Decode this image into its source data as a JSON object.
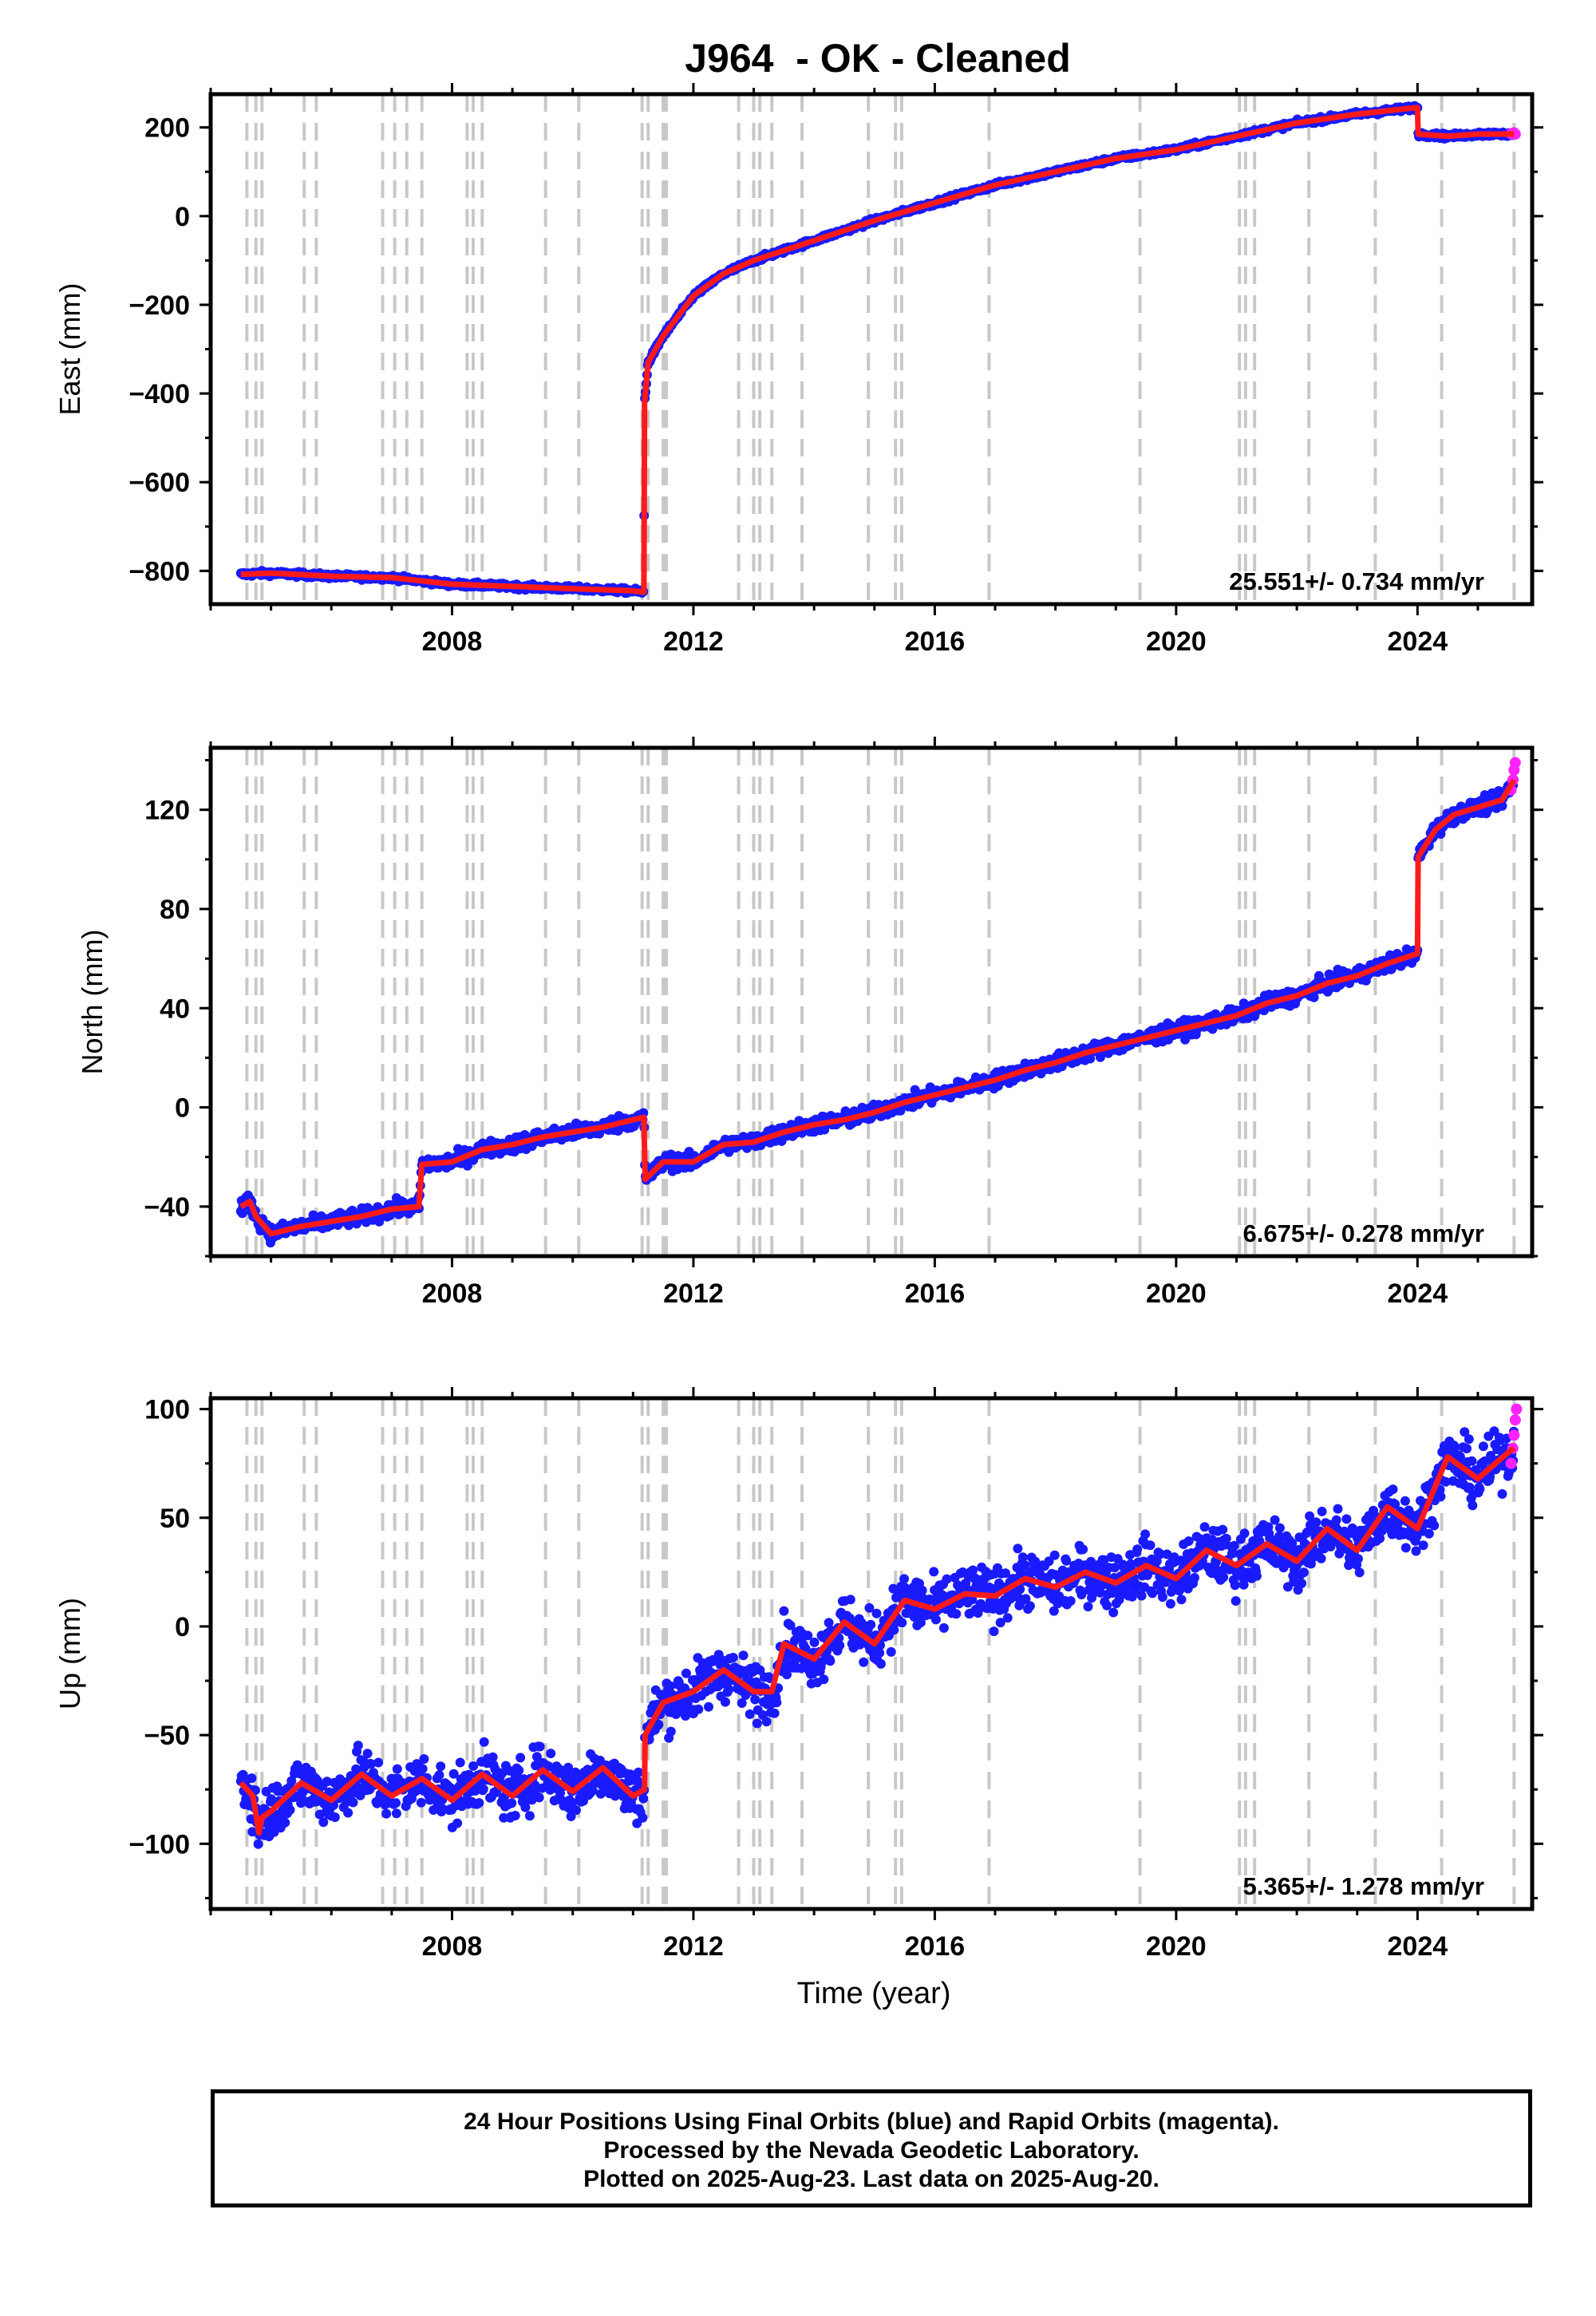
{
  "title": "J964  - OK - Cleaned",
  "colors": {
    "final_orbits": "#1a1aff",
    "rapid_orbits": "#ff22ff",
    "model_fit": "#ff1a1a",
    "event_lines": "#c8c8c8"
  },
  "x_axis": {
    "label": "Time (year)",
    "range": [
      2004.0,
      2025.9
    ],
    "ticks": [
      2008,
      2012,
      2016,
      2020,
      2024
    ]
  },
  "event_dates": [
    2004.6,
    2004.75,
    2004.85,
    2005.55,
    2005.75,
    2006.85,
    2007.05,
    2007.25,
    2007.5,
    2008.25,
    2008.35,
    2008.5,
    2009.55,
    2010.1,
    2011.15,
    2011.25,
    2011.5,
    2011.55,
    2012.75,
    2013.0,
    2013.1,
    2013.3,
    2013.8,
    2014.9,
    2015.35,
    2015.45,
    2016.9,
    2019.4,
    2021.05,
    2021.15,
    2021.3,
    2022.2,
    2023.3,
    2024.4,
    2025.6
  ],
  "footer": {
    "line1": "24 Hour Positions Using Final Orbits (blue) and Rapid Orbits (magenta).",
    "line2": "Processed by the Nevada Geodetic Laboratory.",
    "line3": "Plotted on 2025-Aug-23. Last data on 2025-Aug-20."
  },
  "chart_data": [
    {
      "type": "scatter",
      "name": "East",
      "ylabel": "East (mm)",
      "ylim": [
        -875,
        275
      ],
      "yticks": [
        -800,
        -600,
        -400,
        -200,
        0,
        200
      ],
      "xlabel": "",
      "rate_text": "25.551+/- 0.734 mm/yr",
      "grid": false,
      "fit": {
        "x": [
          2004.5,
          2005.0,
          2006.0,
          2007.0,
          2008.0,
          2009.0,
          2010.0,
          2011.0,
          2011.18,
          2011.19,
          2011.25,
          2011.5,
          2012.0,
          2012.5,
          2013.0,
          2014.0,
          2015.0,
          2016.0,
          2017.0,
          2018.0,
          2019.0,
          2020.0,
          2021.0,
          2022.0,
          2023.0,
          2024.0,
          2024.01,
          2024.5,
          2025.0,
          2025.6
        ],
        "y": [
          -808,
          -805,
          -812,
          -815,
          -830,
          -835,
          -840,
          -845,
          -848,
          -420,
          -330,
          -270,
          -180,
          -130,
          -100,
          -55,
          -10,
          30,
          70,
          100,
          130,
          150,
          180,
          210,
          230,
          245,
          185,
          180,
          185,
          185
        ]
      },
      "final": {
        "x_start": 2004.5,
        "x_end": 2025.6,
        "noise": 4
      },
      "rapid": {
        "x": [
          2025.55,
          2025.6,
          2025.62
        ],
        "y": [
          186,
          188,
          185
        ]
      }
    },
    {
      "type": "scatter",
      "name": "North",
      "ylabel": "North (mm)",
      "ylim": [
        -60,
        145
      ],
      "yticks": [
        -40,
        0,
        40,
        80,
        120
      ],
      "xlabel": "",
      "rate_text": "6.675+/- 0.278 mm/yr",
      "grid": false,
      "fit": {
        "x": [
          2004.5,
          2004.65,
          2004.75,
          2005.0,
          2005.5,
          2006.0,
          2006.5,
          2007.0,
          2007.45,
          2007.5,
          2008.0,
          2008.5,
          2009.0,
          2009.5,
          2010.0,
          2010.5,
          2011.0,
          2011.18,
          2011.2,
          2011.5,
          2012.0,
          2012.5,
          2013.0,
          2013.5,
          2014.0,
          2014.5,
          2015.0,
          2015.5,
          2016.0,
          2016.5,
          2017.0,
          2017.5,
          2018.0,
          2018.5,
          2019.0,
          2019.5,
          2020.0,
          2020.5,
          2021.0,
          2021.5,
          2022.0,
          2022.5,
          2023.0,
          2023.5,
          2024.0,
          2024.01,
          2024.3,
          2024.6,
          2025.0,
          2025.4,
          2025.6
        ],
        "y": [
          -40,
          -38,
          -44,
          -51,
          -48,
          -46,
          -44,
          -41,
          -40,
          -23,
          -22,
          -17,
          -15,
          -12,
          -10,
          -8,
          -5,
          -4,
          -29,
          -22,
          -22,
          -15,
          -14,
          -10,
          -7,
          -5,
          -2,
          2,
          5,
          8,
          11,
          15,
          18,
          22,
          25,
          28,
          31,
          34,
          37,
          42,
          45,
          50,
          53,
          58,
          62,
          101,
          112,
          118,
          121,
          124,
          132
        ]
      },
      "final": {
        "x_start": 2004.5,
        "x_end": 2025.6,
        "noise": 2.2
      },
      "rapid": {
        "x": [
          2025.55,
          2025.58,
          2025.6,
          2025.62
        ],
        "y": [
          128,
          132,
          136,
          139
        ]
      }
    },
    {
      "type": "scatter",
      "name": "Up",
      "ylabel": "Up (mm)",
      "ylim": [
        -130,
        105
      ],
      "yticks": [
        -100,
        -50,
        0,
        50,
        100
      ],
      "xlabel": "Time (year)",
      "rate_text": "5.365+/- 1.278 mm/yr",
      "grid": false,
      "fit": {
        "x": [
          2004.5,
          2004.7,
          2004.8,
          2004.85,
          2005.0,
          2005.5,
          2006.0,
          2006.5,
          2007.0,
          2007.5,
          2008.0,
          2008.5,
          2009.0,
          2009.5,
          2010.0,
          2010.5,
          2011.0,
          2011.19,
          2011.2,
          2011.5,
          2012.0,
          2012.5,
          2013.0,
          2013.3,
          2013.5,
          2014.0,
          2014.5,
          2015.0,
          2015.5,
          2016.0,
          2016.5,
          2017.0,
          2017.5,
          2018.0,
          2018.5,
          2019.0,
          2019.5,
          2020.0,
          2020.5,
          2021.0,
          2021.5,
          2022.0,
          2022.5,
          2023.0,
          2023.5,
          2024.0,
          2024.5,
          2025.0,
          2025.5,
          2025.6
        ],
        "y": [
          -72,
          -78,
          -95,
          -88,
          -85,
          -72,
          -80,
          -68,
          -78,
          -70,
          -80,
          -68,
          -78,
          -66,
          -76,
          -65,
          -78,
          -75,
          -50,
          -35,
          -30,
          -20,
          -30,
          -30,
          -8,
          -15,
          2,
          -8,
          12,
          8,
          15,
          14,
          22,
          18,
          25,
          20,
          28,
          22,
          35,
          28,
          38,
          30,
          45,
          35,
          55,
          45,
          78,
          68,
          80,
          82
        ]
      },
      "final": {
        "x_start": 2004.5,
        "x_end": 2025.6,
        "noise": 9
      },
      "rapid": {
        "x": [
          2025.55,
          2025.58,
          2025.6,
          2025.62,
          2025.64
        ],
        "y": [
          75,
          82,
          88,
          95,
          100
        ]
      }
    }
  ]
}
